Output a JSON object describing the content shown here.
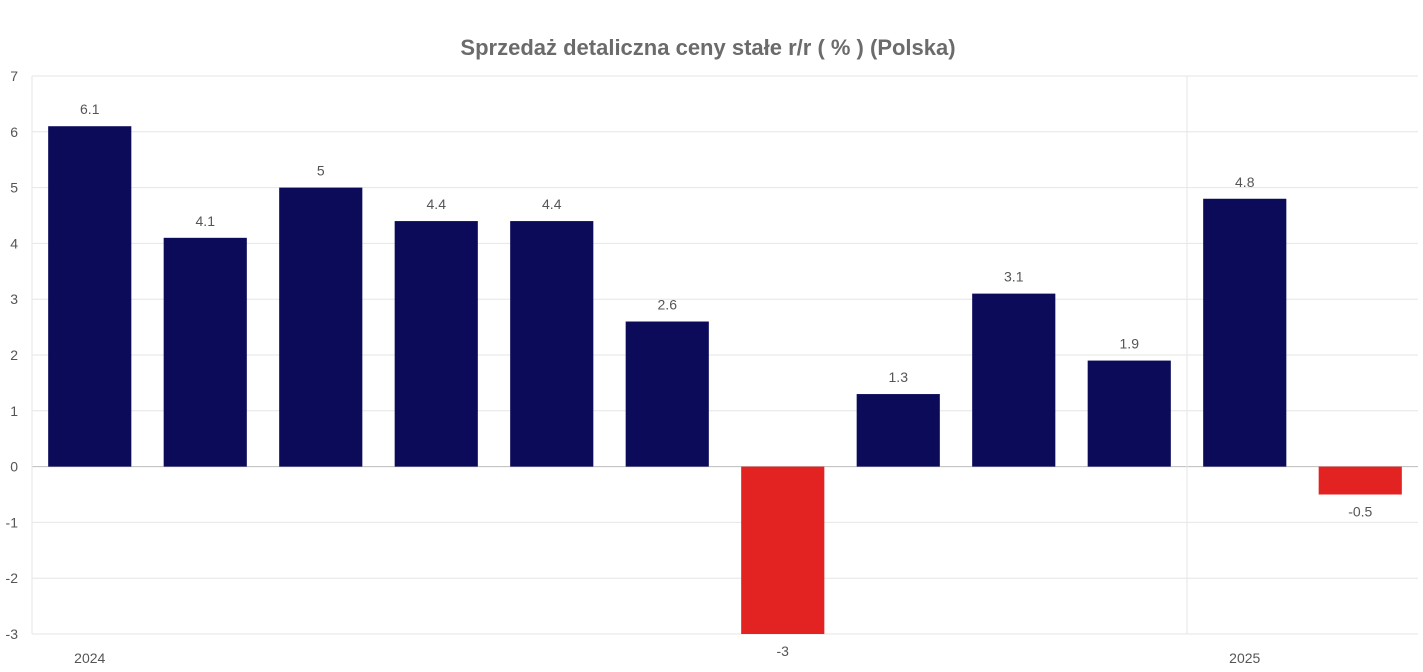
{
  "chart_data": {
    "type": "bar",
    "title": "Sprzedaż detaliczna ceny stałe r/r ( % ) (Polska)",
    "xlabel": "",
    "ylabel": "",
    "ylim": [
      -3,
      7
    ],
    "yticks": [
      -3,
      -2,
      -1,
      0,
      1,
      2,
      3,
      4,
      5,
      6,
      7
    ],
    "grid": true,
    "legend": "none",
    "x_tick_labels": [
      {
        "label": "2024",
        "index": 0
      },
      {
        "label": "2025",
        "index": 10
      }
    ],
    "values": [
      6.1,
      4.1,
      5,
      4.4,
      4.4,
      2.6,
      -3,
      1.3,
      3.1,
      1.9,
      4.8,
      -0.5
    ],
    "data_labels": [
      "6.1",
      "4.1",
      "5",
      "4.4",
      "4.4",
      "2.6",
      "-3",
      "1.3",
      "3.1",
      "1.9",
      "4.8",
      "-0.5"
    ],
    "colors": {
      "positive": "#0b0b5a",
      "negative": "#e32222"
    }
  }
}
